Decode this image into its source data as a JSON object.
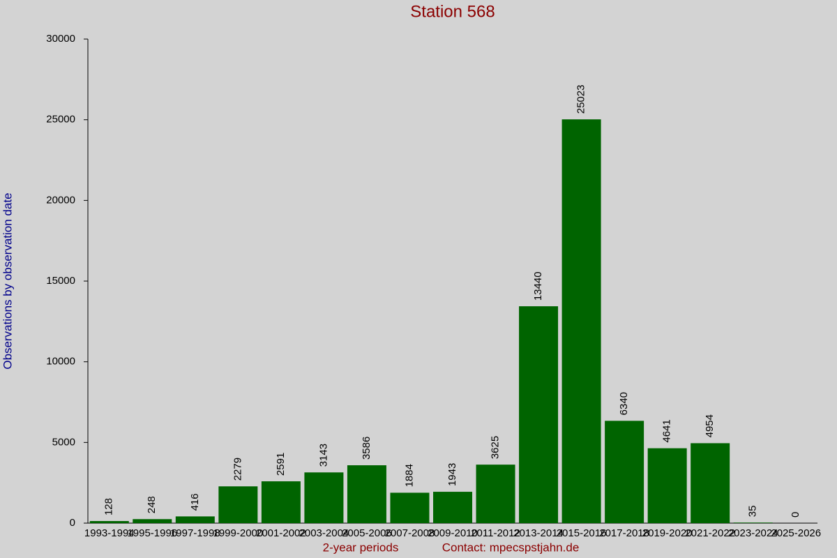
{
  "chart_data": {
    "type": "bar",
    "title": "Station 568",
    "x_label": "2-year periods",
    "contact": "Contact: mpecspstjahn.de",
    "y_label": "Observations by observation date",
    "categories": [
      "1993-1994",
      "1995-1996",
      "1997-1998",
      "1999-2000",
      "2001-2002",
      "2003-2004",
      "2005-2006",
      "2007-2008",
      "2009-2010",
      "2011-2012",
      "2013-2014",
      "2015-2016",
      "2017-2018",
      "2019-2020",
      "2021-2022",
      "2023-2024",
      "2025-2026"
    ],
    "values": [
      128,
      248,
      416,
      2279,
      2591,
      3143,
      3586,
      1884,
      1943,
      3625,
      13440,
      25023,
      6340,
      4641,
      4954,
      35,
      0
    ],
    "color": "#006400",
    "ylim": [
      0,
      30000
    ],
    "yticks": [
      0,
      5000,
      10000,
      15000,
      20000,
      25000,
      30000
    ],
    "grid": false
  }
}
